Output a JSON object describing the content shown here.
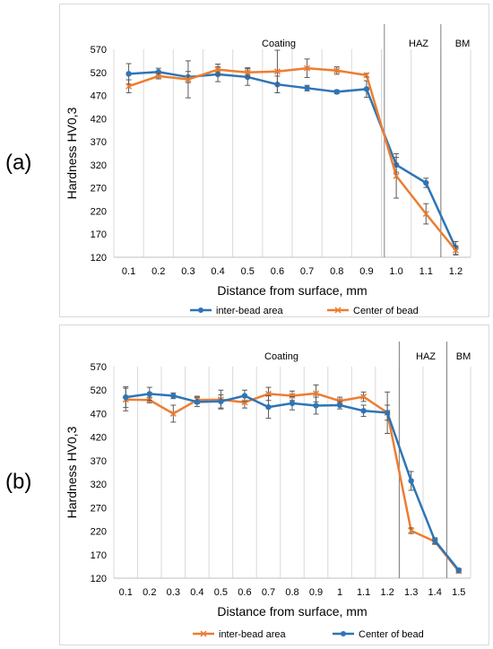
{
  "colors": {
    "blue": "#2e75b6",
    "orange": "#ed7d31",
    "grid": "#d9d9d9",
    "zone_line": "#7f7f7f",
    "error_bar": "#595959"
  },
  "panels": [
    {
      "label": "(a)"
    },
    {
      "label": "(b)"
    }
  ],
  "chart_data": [
    {
      "type": "line",
      "ylabel": "Hardness HV0,3",
      "xlabel": "Distance from surface, mm",
      "yticks": [
        120,
        170,
        220,
        270,
        320,
        370,
        420,
        470,
        520,
        570
      ],
      "ylim": [
        120,
        570
      ],
      "xticks": [
        "0.1",
        "0.2",
        "0.3",
        "0.4",
        "0.5",
        "0.6",
        "0.7",
        "0.8",
        "0.9",
        "1.0",
        "1.1",
        "1.2"
      ],
      "grid": "vertical",
      "legend_position": "bottom",
      "zone_labels": [
        "Coating",
        "HAZ",
        "BM"
      ],
      "zone_boundaries": [
        0.96,
        1.15
      ],
      "series": [
        {
          "name": "inter-bead area",
          "color": "#2e75b6",
          "marker": "circle",
          "x": [
            0.1,
            0.2,
            0.3,
            0.4,
            0.5,
            0.6,
            0.7,
            0.8,
            0.9,
            1.0,
            1.1,
            1.2
          ],
          "y": [
            517,
            521,
            510,
            516,
            510,
            494,
            486,
            478,
            484,
            320,
            281,
            140
          ],
          "err": [
            22,
            8,
            12,
            16,
            18,
            18,
            6,
            4,
            18,
            16,
            10,
            14
          ]
        },
        {
          "name": "Center of bead",
          "color": "#ed7d31",
          "marker": "x",
          "x": [
            0.1,
            0.2,
            0.3,
            0.4,
            0.5,
            0.6,
            0.7,
            0.8,
            0.9,
            1.0,
            1.1,
            1.2
          ],
          "y": [
            490,
            512,
            505,
            526,
            520,
            522,
            529,
            524,
            514,
            296,
            214,
            135
          ],
          "err": [
            14,
            6,
            40,
            12,
            10,
            46,
            20,
            8,
            4,
            48,
            22,
            10
          ]
        }
      ]
    },
    {
      "type": "line",
      "ylabel": "Hardness HV0,3",
      "xlabel": "Distance from surface, mm",
      "yticks": [
        120,
        170,
        220,
        270,
        320,
        370,
        420,
        470,
        520,
        570
      ],
      "ylim": [
        120,
        570
      ],
      "xticks": [
        "0.1",
        "0.2",
        "0.3",
        "0.4",
        "0.5",
        "0.6",
        "0.7",
        "0.8",
        "0.9",
        "1",
        "1.1",
        "1.2",
        "1.3",
        "1.4",
        "1.5"
      ],
      "grid": "vertical",
      "legend_position": "bottom",
      "zone_labels": [
        "Coating",
        "HAZ",
        "BM"
      ],
      "zone_boundaries": [
        1.25,
        1.45
      ],
      "series": [
        {
          "name": "inter-bead area",
          "color": "#ed7d31",
          "marker": "x",
          "x": [
            0.1,
            0.2,
            0.3,
            0.4,
            0.5,
            0.6,
            0.7,
            0.8,
            0.9,
            1.0,
            1.1,
            1.2,
            1.3,
            1.4,
            1.5
          ],
          "y": [
            500,
            499,
            470,
            499,
            500,
            494,
            512,
            508,
            513,
            497,
            506,
            472,
            221,
            198,
            135
          ],
          "err": [
            24,
            6,
            18,
            8,
            20,
            12,
            14,
            10,
            18,
            8,
            10,
            44,
            6,
            6,
            4
          ]
        },
        {
          "name": "Center of bead",
          "color": "#2e75b6",
          "marker": "circle",
          "x": [
            0.1,
            0.2,
            0.3,
            0.4,
            0.5,
            0.6,
            0.7,
            0.8,
            0.9,
            1.0,
            1.1,
            1.2,
            1.3,
            1.4,
            1.5
          ],
          "y": [
            505,
            512,
            508,
            495,
            496,
            508,
            484,
            492,
            487,
            488,
            476,
            472,
            327,
            200,
            137
          ],
          "err": [
            22,
            14,
            6,
            10,
            14,
            12,
            24,
            14,
            18,
            8,
            12,
            16,
            20,
            6,
            4
          ]
        }
      ]
    }
  ]
}
